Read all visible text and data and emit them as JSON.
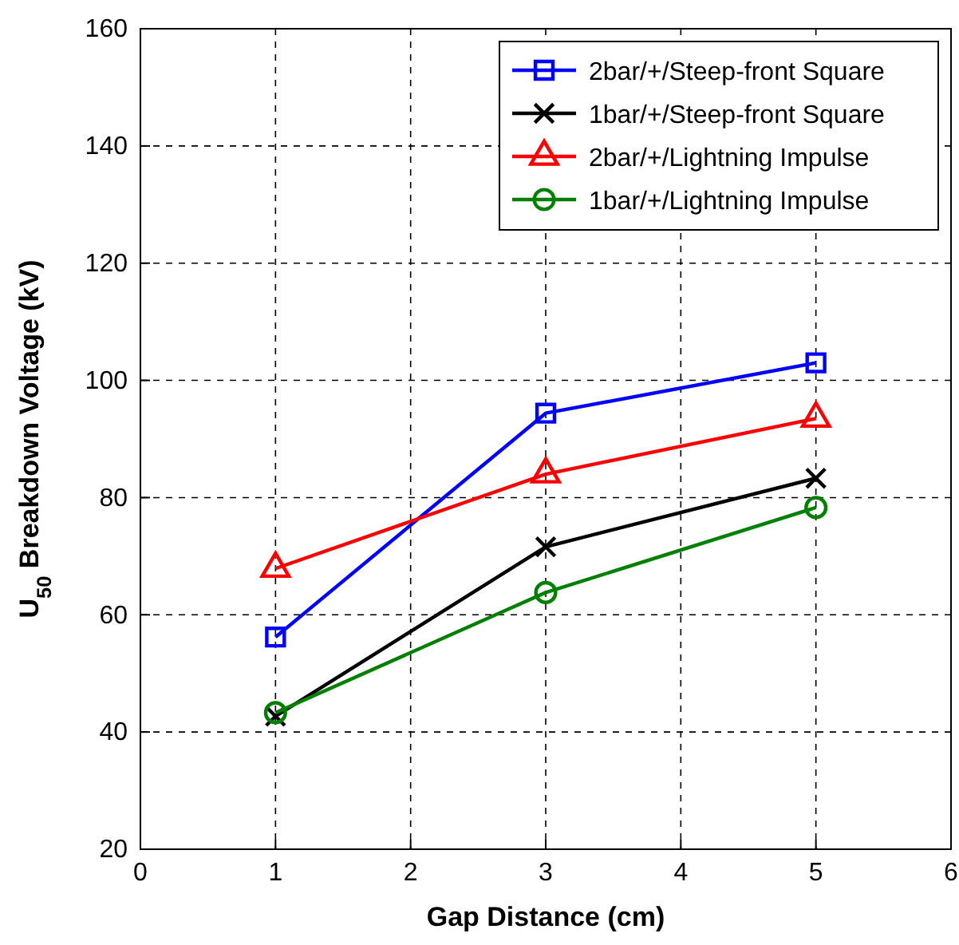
{
  "chart_data": {
    "type": "line",
    "xlabel": "Gap Distance (cm)",
    "ylabel": "U$_{50}$ Breakdown Voltage (kV)",
    "x": [
      1,
      3,
      5
    ],
    "xlim": [
      0,
      6
    ],
    "xticks": [
      0,
      1,
      2,
      3,
      4,
      5,
      6
    ],
    "ylim": [
      20,
      160
    ],
    "yticks": [
      20,
      40,
      60,
      80,
      100,
      120,
      140,
      160
    ],
    "grid": true,
    "legend": "top right",
    "series": [
      {
        "name": "2bar/+/Steep-front Square",
        "color": "#0000ff",
        "marker": "square",
        "values": [
          56.2,
          94.4,
          103
        ]
      },
      {
        "name": "1bar/+/Steep-front Square",
        "color": "#000000",
        "marker": "cross",
        "values": [
          42.7,
          71.6,
          83.3
        ]
      },
      {
        "name": "2bar/+/Lightning Impulse",
        "color": "#ff0000",
        "marker": "triangle",
        "values": [
          67.9,
          84,
          93.5
        ]
      },
      {
        "name": "1bar/+/Lightning Impulse",
        "color": "#008000",
        "marker": "circle",
        "values": [
          43.3,
          63.8,
          78.3
        ]
      }
    ]
  }
}
